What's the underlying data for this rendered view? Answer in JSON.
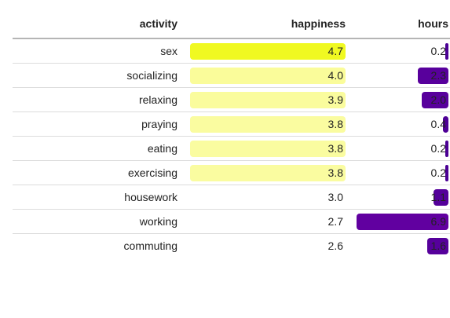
{
  "chart_data": {
    "type": "table",
    "columns": [
      "activity",
      "happiness",
      "hours"
    ],
    "rows": [
      {
        "activity": "sex",
        "happiness": "4.7",
        "hours": "0.2",
        "happiness_value": 4.7,
        "hours_value": 0.2,
        "happiness_color": "#f0f921",
        "hours_color": "#4b0094"
      },
      {
        "activity": "socializing",
        "happiness": "4.0",
        "hours": "2.3",
        "happiness_value": 4.0,
        "hours_value": 2.3,
        "happiness_color": "#fafc9a",
        "hours_color": "#58009c"
      },
      {
        "activity": "relaxing",
        "happiness": "3.9",
        "hours": "2.0",
        "happiness_value": 3.9,
        "hours_value": 2.0,
        "happiness_color": "#fafc9d",
        "hours_color": "#58009c"
      },
      {
        "activity": "praying",
        "happiness": "3.8",
        "hours": "0.4",
        "happiness_value": 3.8,
        "hours_value": 0.4,
        "happiness_color": "#fafca0",
        "hours_color": "#4e0096"
      },
      {
        "activity": "eating",
        "happiness": "3.8",
        "hours": "0.2",
        "happiness_value": 3.8,
        "hours_value": 0.2,
        "happiness_color": "#fafca0",
        "hours_color": "#4b0094"
      },
      {
        "activity": "exercising",
        "happiness": "3.8",
        "hours": "0.2",
        "happiness_value": 3.8,
        "hours_value": 0.2,
        "happiness_color": "#fafca0",
        "hours_color": "#4b0094"
      },
      {
        "activity": "housework",
        "happiness": "3.0",
        "hours": "1.1",
        "happiness_value": 3.0,
        "hours_value": 1.1,
        "happiness_color": "#fffdf6",
        "hours_color": "#54009a"
      },
      {
        "activity": "working",
        "happiness": "2.7",
        "hours": "6.9",
        "happiness_value": 2.7,
        "hours_value": 6.9,
        "happiness_color": "#ffffff",
        "hours_color": "#6100a0"
      },
      {
        "activity": "commuting",
        "happiness": "2.6",
        "hours": "1.6",
        "happiness_value": 2.6,
        "hours_value": 1.6,
        "happiness_color": "#ffffff",
        "hours_color": "#56009b"
      }
    ],
    "happiness_range": [
      2.6,
      4.7
    ],
    "hours_range": [
      0,
      6.9
    ]
  }
}
